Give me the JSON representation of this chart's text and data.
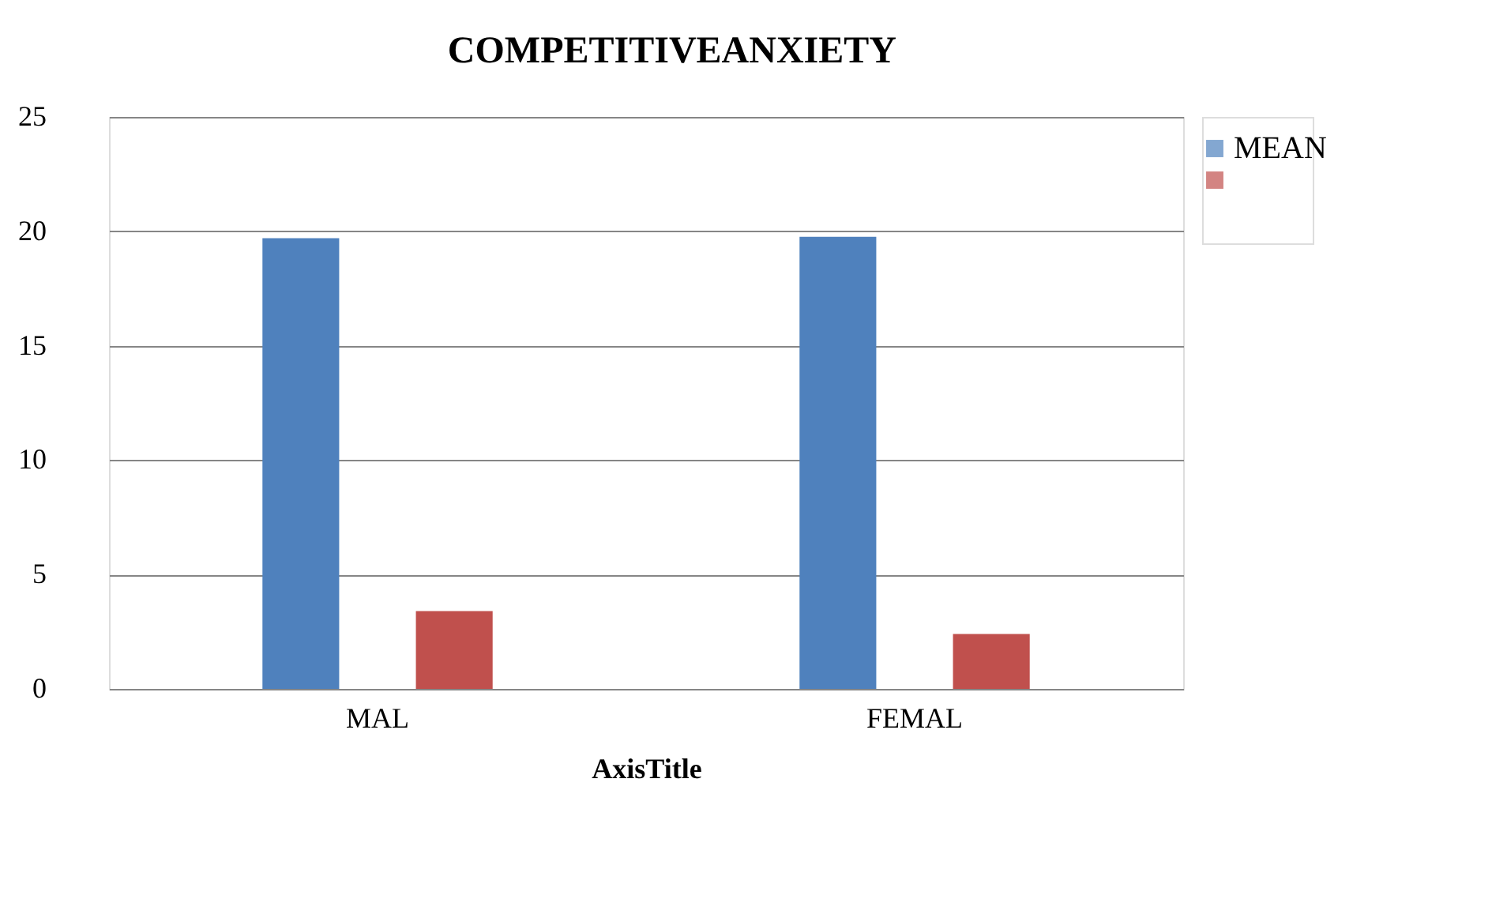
{
  "chart_data": {
    "type": "bar",
    "title": "COMPETITIVEANXIETY",
    "xlabel": "AxisTitle",
    "categories": [
      "MAL",
      "FEMAL"
    ],
    "series": [
      {
        "name": "MEAN",
        "color": "#4f81bd",
        "values": [
          19.7,
          19.76
        ]
      },
      {
        "color": "#c0504d",
        "values": [
          3.4,
          2.4
        ]
      }
    ],
    "ylim": [
      0,
      25
    ],
    "yticks": [
      0,
      5,
      10,
      15,
      20,
      25
    ],
    "grid": "y",
    "legend": "right"
  }
}
